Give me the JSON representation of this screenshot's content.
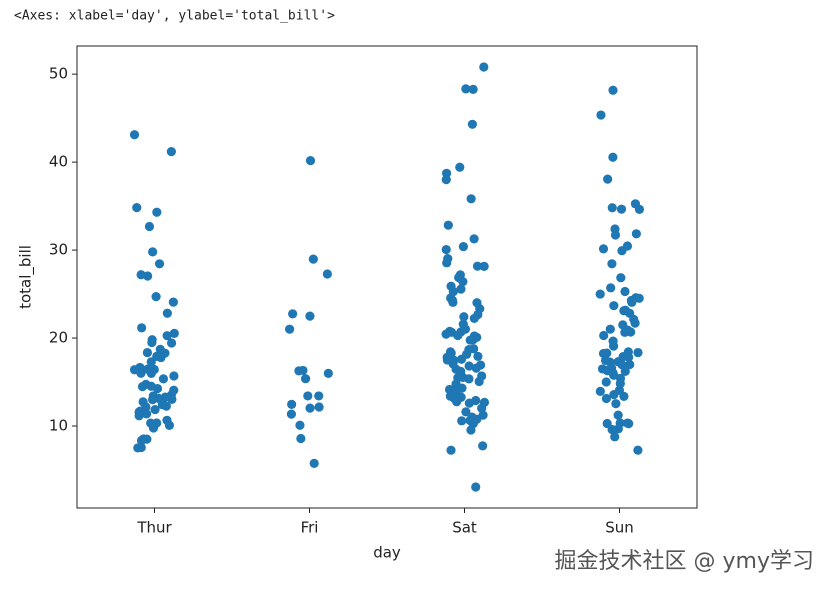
{
  "header": "<Axes: xlabel='day', ylabel='total_bill'>",
  "watermark": "掘金技术社区 @ ymy学习",
  "chart_data": {
    "type": "strip",
    "xlabel": "day",
    "ylabel": "total_bill",
    "color": "#1f77b4",
    "categories": [
      "Thur",
      "Fri",
      "Sat",
      "Sun"
    ],
    "values": [
      [
        43.11,
        41.19,
        34.83,
        34.3,
        32.68,
        29.8,
        28.44,
        27.2,
        27.05,
        24.71,
        24.08,
        22.82,
        21.16,
        20.53,
        20.27,
        19.81,
        19.44,
        19.49,
        18.71,
        18.35,
        18.28,
        17.92,
        17.78,
        17.29,
        16.66,
        16.47,
        16.43,
        16.4,
        16.0,
        15.98,
        15.69,
        15.36,
        14.73,
        14.52,
        14.48,
        14.26,
        14.07,
        13.51,
        13.42,
        13.28,
        13.16,
        13.03,
        13.0,
        12.74,
        12.43,
        12.26,
        12.16,
        11.87,
        11.69,
        11.59,
        11.38,
        11.17,
        10.65,
        10.34,
        10.33,
        10.07,
        9.78,
        8.52,
        8.51,
        8.35,
        7.56,
        7.51
      ],
      [
        28.97,
        22.49,
        5.75,
        16.32,
        22.75,
        40.17,
        27.28,
        12.03,
        21.01,
        12.46,
        11.35,
        15.38,
        12.16,
        13.42,
        8.58,
        15.98,
        13.42,
        16.27,
        10.09
      ],
      [
        50.81,
        48.33,
        48.27,
        44.3,
        39.42,
        38.73,
        38.01,
        35.83,
        32.83,
        31.27,
        30.4,
        30.06,
        29.03,
        28.55,
        28.17,
        28.15,
        27.18,
        26.88,
        26.41,
        25.89,
        25.56,
        25.28,
        24.55,
        24.27,
        24.06,
        24.01,
        23.33,
        22.67,
        22.42,
        22.23,
        21.58,
        21.01,
        20.76,
        20.69,
        20.65,
        20.45,
        20.29,
        20.23,
        20.08,
        19.82,
        19.77,
        18.78,
        18.69,
        18.43,
        18.29,
        18.15,
        17.92,
        17.81,
        17.59,
        17.51,
        17.47,
        17.07,
        16.93,
        16.82,
        16.58,
        16.45,
        16.21,
        15.81,
        15.69,
        15.53,
        15.48,
        15.36,
        15.06,
        14.78,
        14.31,
        14.15,
        13.94,
        13.81,
        13.39,
        13.27,
        13.13,
        12.9,
        12.76,
        12.69,
        12.6,
        12.02,
        11.61,
        11.24,
        11.02,
        10.77,
        10.63,
        10.59,
        10.27,
        9.55,
        7.74,
        7.25,
        3.07
      ],
      [
        48.17,
        45.35,
        40.55,
        38.07,
        35.26,
        34.81,
        34.65,
        34.63,
        32.4,
        31.85,
        31.71,
        30.46,
        30.14,
        29.93,
        28.44,
        26.86,
        25.71,
        25.29,
        25.0,
        24.59,
        24.52,
        24.27,
        24.06,
        23.68,
        23.17,
        23.1,
        22.82,
        22.12,
        21.7,
        21.5,
        21.01,
        20.9,
        20.69,
        20.65,
        20.29,
        19.65,
        19.08,
        18.43,
        18.35,
        18.29,
        18.24,
        17.89,
        17.82,
        17.46,
        17.31,
        17.26,
        16.99,
        16.97,
        16.58,
        16.49,
        16.31,
        16.29,
        16.21,
        16.04,
        15.77,
        15.42,
        15.01,
        14.83,
        14.07,
        13.94,
        13.57,
        13.37,
        13.13,
        12.54,
        11.24,
        10.34,
        10.33,
        10.29,
        10.27,
        9.68,
        9.6,
        8.77,
        7.25
      ]
    ],
    "ylim": [
      0.68,
      53.2
    ],
    "yticks": [
      10,
      20,
      30,
      40,
      50
    ]
  }
}
